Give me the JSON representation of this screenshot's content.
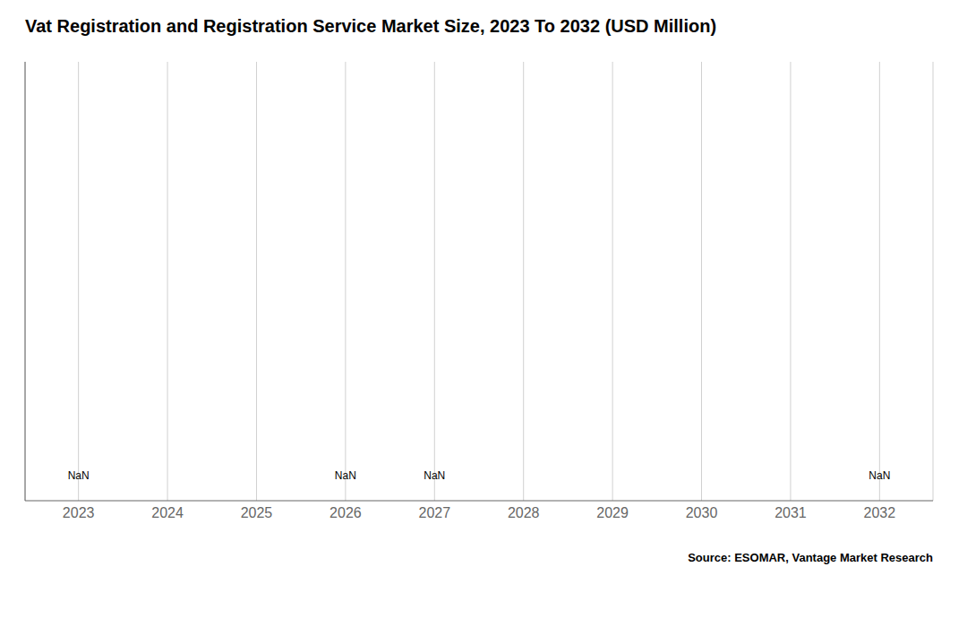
{
  "chart_data": {
    "type": "bar",
    "title": "Vat Registration and Registration Service Market Size, 2023 To 2032 (USD Million)",
    "x": [
      2023,
      2024,
      2025,
      2026,
      2027,
      2028,
      2029,
      2030,
      2031,
      2032
    ],
    "values": [
      null,
      null,
      null,
      null,
      null,
      null,
      null,
      null,
      null,
      null
    ],
    "xlim": [
      2022.4,
      2032.6
    ],
    "xticks": [
      2023,
      2024,
      2025,
      2026,
      2027,
      2028,
      2029,
      2030,
      2031,
      2032
    ],
    "ylim": [
      0,
      1
    ],
    "tick_labels": "x",
    "grid": true,
    "color": "#d0d0d0",
    "annotations": [
      {
        "text": "NaN",
        "x": 2023,
        "y": 0.04
      },
      {
        "text": "NaN",
        "x": 2026,
        "y": 0.04
      },
      {
        "text": "NaN",
        "x": 2027,
        "y": 0.04
      },
      {
        "text": "NaN",
        "x": 2032,
        "y": 0.04
      },
      {
        "text": "Source: ESOMAR, Vantage Market Research"
      }
    ]
  }
}
